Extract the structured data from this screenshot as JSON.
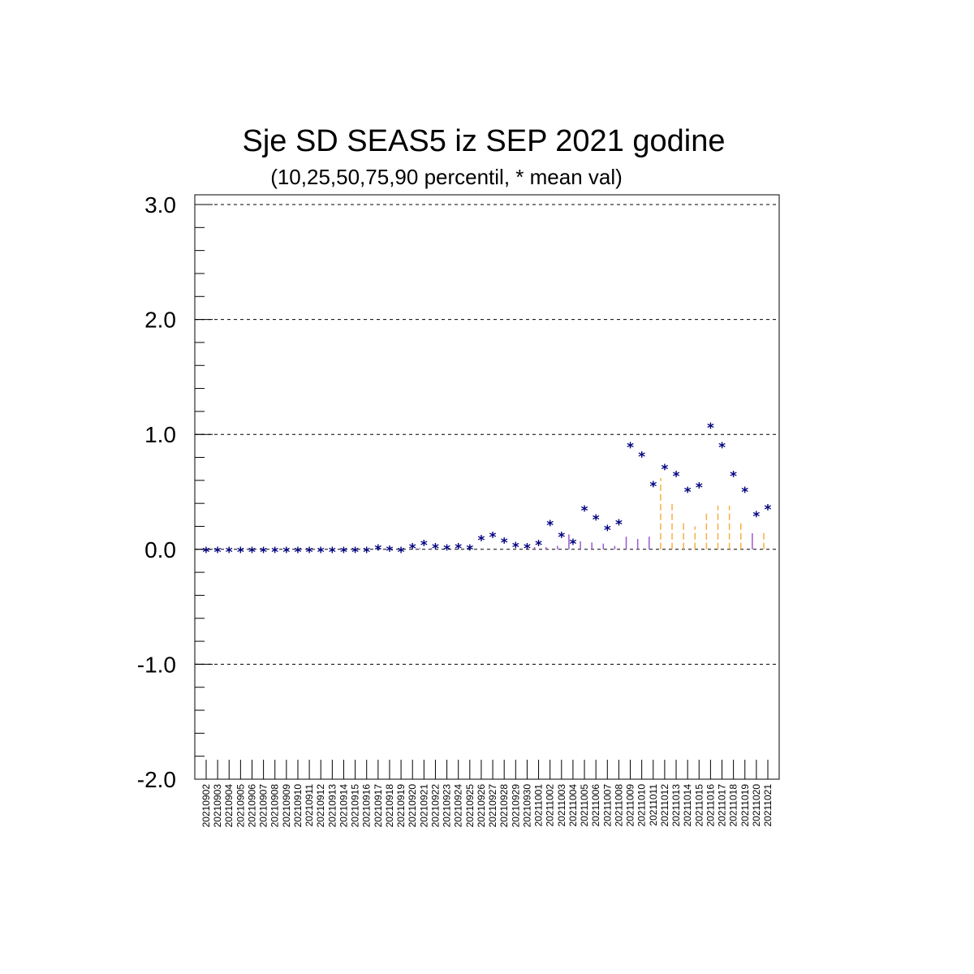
{
  "chart_data": {
    "type": "scatter",
    "title": "Sje SD SEAS5 iz SEP 2021 godine",
    "subtitle": "(10,25,50,75,90 percentil, * mean val)",
    "ylim": [
      -2.0,
      3.0
    ],
    "yticks": [
      "3.0",
      "2.0",
      "1.0",
      "0.0",
      "-1.0",
      "-2.0"
    ],
    "yticks_values": [
      3.0,
      2.0,
      1.0,
      0.0,
      -1.0,
      -2.0
    ],
    "grid": "horizontal dashed at major ticks",
    "categories": [
      "20210902",
      "20210903",
      "20210904",
      "20210905",
      "20210906",
      "20210907",
      "20210908",
      "20210909",
      "20210910",
      "20210911",
      "20210912",
      "20210913",
      "20210914",
      "20210915",
      "20210916",
      "20210917",
      "20210918",
      "20210919",
      "20210920",
      "20210921",
      "20210922",
      "20210923",
      "20210924",
      "20210925",
      "20210926",
      "20210927",
      "20210928",
      "20210929",
      "20210930",
      "20211001",
      "20211002",
      "20211003",
      "20211004",
      "20211005",
      "20211006",
      "20211007",
      "20211008",
      "20211009",
      "20211010",
      "20211011",
      "20211012",
      "20211013",
      "20211014",
      "20211015",
      "20211016",
      "20211017",
      "20211018",
      "20211019",
      "20211020",
      "20211021"
    ],
    "mean": [
      0,
      0,
      0,
      0,
      0,
      0,
      0,
      0,
      0,
      0,
      0,
      0,
      0,
      0,
      0,
      0.02,
      0.01,
      0,
      0.03,
      0.06,
      0.03,
      0.02,
      0.03,
      0.02,
      0.1,
      0.13,
      0.08,
      0.04,
      0.03,
      0.06,
      0.23,
      0.13,
      0.07,
      0.36,
      0.28,
      0.19,
      0.24,
      0.91,
      0.83,
      0.57,
      0.72,
      0.66,
      0.52,
      0.56,
      1.08,
      0.91,
      0.66,
      0.52,
      0.31,
      0.37
    ],
    "p90": [
      0,
      0,
      0,
      0,
      0,
      0,
      0,
      0,
      0,
      0,
      0,
      0,
      0,
      0,
      0,
      0,
      0,
      0,
      0,
      0.01,
      0.01,
      0,
      0,
      0,
      0,
      0,
      0,
      0,
      0,
      0.02,
      0.02,
      0.03,
      0.13,
      0.07,
      0.06,
      0.05,
      0.03,
      0.11,
      0.09,
      0.11,
      0.62,
      0.4,
      0.24,
      0.2,
      0.32,
      0.38,
      0.38,
      0.23,
      0.14,
      0.16
    ],
    "colors": {
      "mean": "#000080",
      "percentile_low": "#9b59d0",
      "percentile_high": "#f5b041",
      "grid": "#000000"
    }
  }
}
